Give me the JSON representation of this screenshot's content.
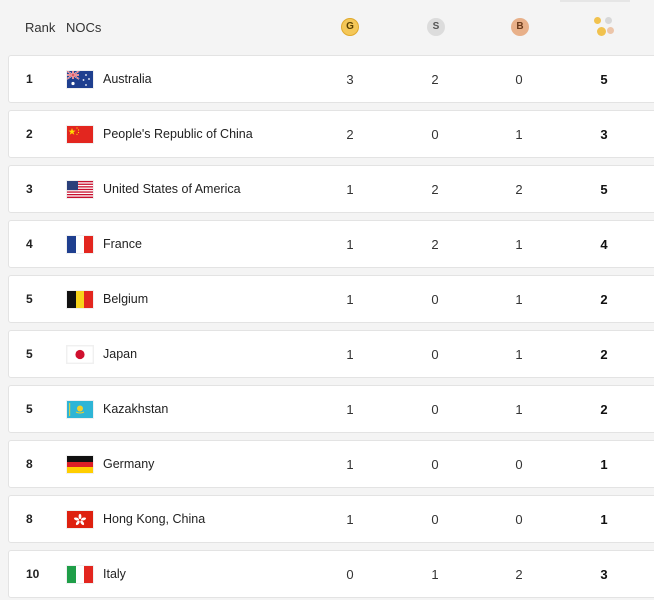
{
  "header": {
    "rank": "Rank",
    "noc": "NOCs",
    "gold_badge": "G",
    "silver_badge": "S",
    "bronze_badge": "B"
  },
  "colors": {
    "gold": "#f4c758",
    "silver": "#dcdcdc",
    "bronze": "#e8b089"
  },
  "rows": [
    {
      "rank": "1",
      "country": "Australia",
      "gold": "3",
      "silver": "2",
      "bronze": "0",
      "total": "5",
      "flag": "australia-flag"
    },
    {
      "rank": "2",
      "country": "People's Republic of China",
      "gold": "2",
      "silver": "0",
      "bronze": "1",
      "total": "3",
      "flag": "china-flag"
    },
    {
      "rank": "3",
      "country": "United States of America",
      "gold": "1",
      "silver": "2",
      "bronze": "2",
      "total": "5",
      "flag": "usa-flag"
    },
    {
      "rank": "4",
      "country": "France",
      "gold": "1",
      "silver": "2",
      "bronze": "1",
      "total": "4",
      "flag": "france-flag"
    },
    {
      "rank": "5",
      "country": "Belgium",
      "gold": "1",
      "silver": "0",
      "bronze": "1",
      "total": "2",
      "flag": "belgium-flag"
    },
    {
      "rank": "5",
      "country": "Japan",
      "gold": "1",
      "silver": "0",
      "bronze": "1",
      "total": "2",
      "flag": "japan-flag"
    },
    {
      "rank": "5",
      "country": "Kazakhstan",
      "gold": "1",
      "silver": "0",
      "bronze": "1",
      "total": "2",
      "flag": "kazakhstan-flag"
    },
    {
      "rank": "8",
      "country": "Germany",
      "gold": "1",
      "silver": "0",
      "bronze": "0",
      "total": "1",
      "flag": "germany-flag"
    },
    {
      "rank": "8",
      "country": "Hong Kong, China",
      "gold": "1",
      "silver": "0",
      "bronze": "0",
      "total": "1",
      "flag": "hong-kong-flag"
    },
    {
      "rank": "10",
      "country": "Italy",
      "gold": "0",
      "silver": "1",
      "bronze": "2",
      "total": "3",
      "flag": "italy-flag"
    }
  ]
}
